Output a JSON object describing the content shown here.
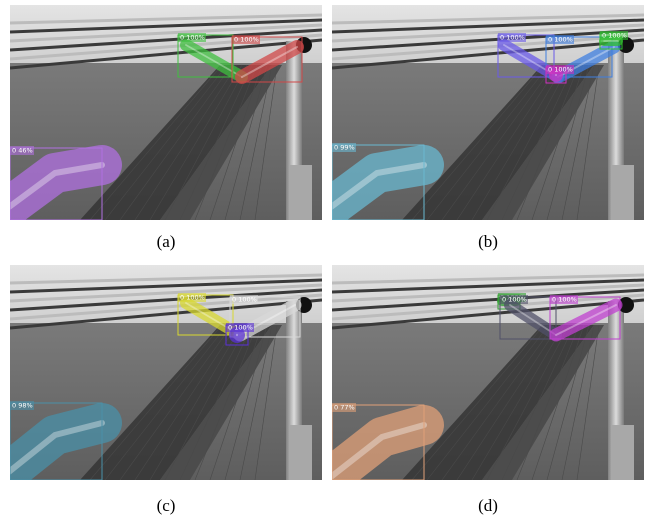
{
  "panels": [
    {
      "caption": "(a)",
      "boxes": [
        {
          "label": "0 100%",
          "color": "#3fbf3f"
        },
        {
          "label": "0 100%",
          "color": "#d04848"
        },
        {
          "label": "0 46%",
          "color": "#b070e0"
        }
      ]
    },
    {
      "caption": "(b)",
      "boxes": [
        {
          "label": "0 100%",
          "color": "#6a5ae8"
        },
        {
          "label": "0 100%",
          "color": "#3f7fe0"
        },
        {
          "label": "0 100%",
          "color": "#30c030"
        },
        {
          "label": "0 100%",
          "color": "#d030c0"
        },
        {
          "label": "0 99%",
          "color": "#6ab8d0"
        }
      ]
    },
    {
      "caption": "(c)",
      "boxes": [
        {
          "label": "0 100%",
          "color": "#d8d830"
        },
        {
          "label": "0 100%",
          "color": "#d8d8d8"
        },
        {
          "label": "0 100%",
          "color": "#5a30d8"
        },
        {
          "label": "0 98%",
          "color": "#4a90a8"
        }
      ]
    },
    {
      "caption": "(d)",
      "boxes": [
        {
          "label": "0 100%",
          "color": "#30a030"
        },
        {
          "label": "0 100%",
          "color": "#505068"
        },
        {
          "label": "0 100%",
          "color": "#c040d0"
        },
        {
          "label": "0 77%",
          "color": "#e0a078"
        }
      ]
    }
  ]
}
